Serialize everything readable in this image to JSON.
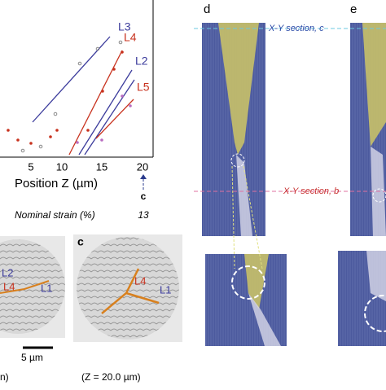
{
  "plot": {
    "x_ticks": [
      "5",
      "10",
      "15",
      "20"
    ],
    "x_label": "Position Z (µm)",
    "marker": "c",
    "strain_label": "Nominal strain (%)",
    "strain_value": "13",
    "lines": [
      "L3",
      "L4",
      "L2",
      "L5"
    ]
  },
  "panels": {
    "b": {
      "lines": [
        "L2",
        "L4",
        "L1"
      ],
      "scale": "5 µm",
      "caption": "n)"
    },
    "c": {
      "label": "c",
      "lines": [
        "L4",
        "L1"
      ],
      "caption": "(Z = 20.0 µm)"
    },
    "d": {
      "label": "d"
    },
    "e": {
      "label": "e"
    }
  },
  "sections": {
    "c": "X-Y section, c",
    "b": "X-Y section, b"
  }
}
